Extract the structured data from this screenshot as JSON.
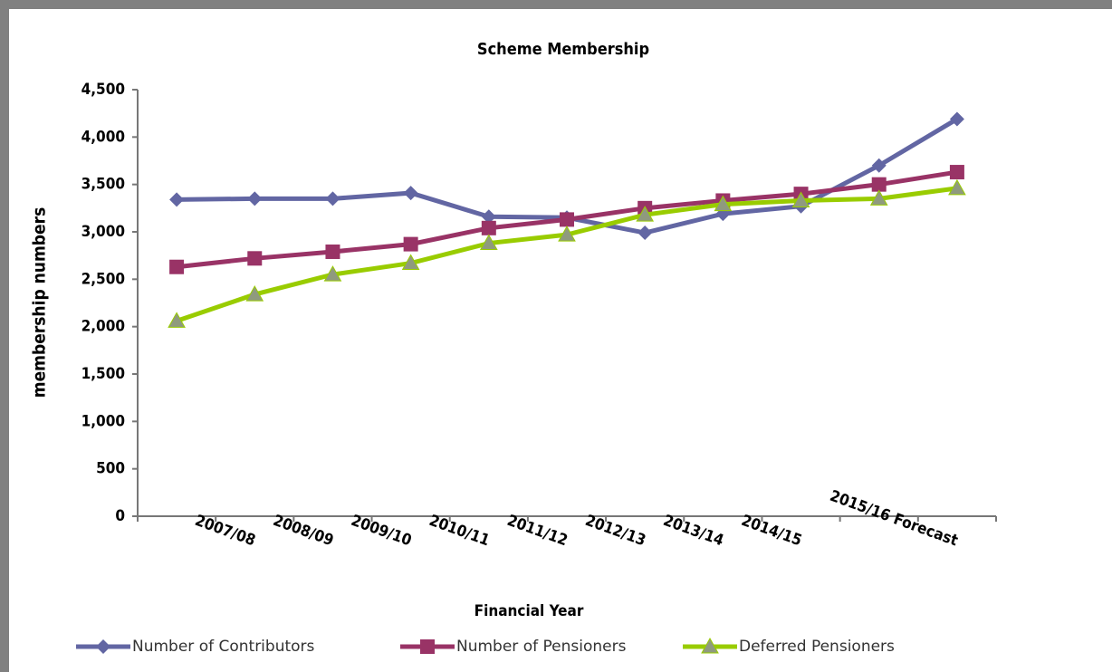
{
  "chart_data": {
    "type": "line",
    "title": "Scheme Membership",
    "x_label": "Financial Year",
    "y_label": "membership numbers",
    "categories": [
      null,
      "2007/08",
      "2008/09",
      "2009/10",
      "2010/11",
      "2011/12",
      "2012/13",
      "2013/14",
      "2014/15",
      null,
      "2015/16 Forecast"
    ],
    "series": [
      {
        "name": "Number of Contributors",
        "color": "#6266a3",
        "marker": "diamond",
        "values": [
          3340,
          3350,
          3350,
          3410,
          3160,
          3150,
          2990,
          3190,
          3270,
          3700,
          4190
        ]
      },
      {
        "name": "Number of Pensioners",
        "color": "#993366",
        "marker": "square",
        "values": [
          2630,
          2720,
          2790,
          2870,
          3040,
          3130,
          3250,
          3330,
          3400,
          3500,
          3630
        ]
      },
      {
        "name": "Deferred Pensioners",
        "color": "#99cc00",
        "marker": "triangle",
        "values": [
          2060,
          2340,
          2550,
          2670,
          2880,
          2970,
          3180,
          3290,
          3330,
          3350,
          3460
        ]
      }
    ],
    "ylim": [
      0,
      4500
    ],
    "yticks": [
      0,
      500,
      {
        "value": 1000,
        "label": "1,000"
      },
      {
        "value": 1500,
        "label": "1,500"
      },
      {
        "value": 2000,
        "label": "2,000"
      },
      {
        "value": 2500,
        "label": "2,500"
      },
      {
        "value": 3000,
        "label": "3,000"
      },
      {
        "value": 3500,
        "label": "3,500"
      },
      {
        "value": 4000,
        "label": "4,000"
      },
      {
        "value": 4500,
        "label": "4,500"
      }
    ],
    "legend": "bottom"
  }
}
